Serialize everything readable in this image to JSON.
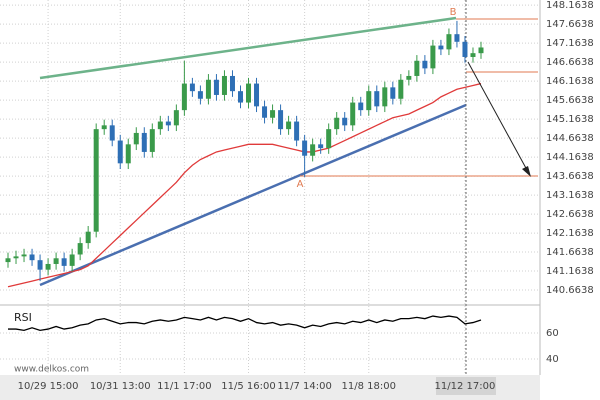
{
  "chart_data": {
    "type": "candlestick",
    "x": [
      null,
      null,
      null,
      null,
      null,
      "10/29 15:00",
      null,
      null,
      null,
      null,
      null,
      null,
      null,
      null,
      "10/31 13:00",
      null,
      null,
      null,
      null,
      null,
      null,
      null,
      "11/1 17:00",
      null,
      null,
      null,
      null,
      null,
      null,
      null,
      "11/5 16:00",
      null,
      null,
      null,
      null,
      null,
      null,
      "11/7 14:00",
      null,
      null,
      null,
      null,
      null,
      null,
      null,
      "11/8 18:00",
      null,
      null,
      null,
      null,
      null,
      null,
      null,
      null,
      null,
      null,
      null,
      "11/12 17:00",
      null,
      null
    ],
    "open": [
      141.4,
      141.5,
      141.55,
      141.6,
      141.45,
      141.2,
      141.35,
      141.5,
      141.3,
      141.6,
      141.9,
      142.2,
      144.9,
      145.0,
      144.6,
      144.0,
      144.5,
      144.8,
      144.3,
      144.9,
      145.1,
      145.0,
      145.4,
      146.1,
      145.9,
      145.7,
      146.2,
      145.8,
      146.3,
      145.9,
      145.6,
      146.1,
      145.5,
      145.2,
      145.4,
      144.9,
      145.1,
      144.6,
      144.2,
      144.5,
      144.4,
      144.9,
      145.2,
      145.0,
      145.6,
      145.4,
      145.9,
      145.5,
      146.0,
      145.7,
      146.2,
      146.3,
      146.7,
      146.5,
      147.1,
      147.0,
      147.4,
      147.2,
      146.8,
      146.9
    ],
    "high": [
      141.65,
      141.7,
      141.75,
      141.75,
      141.6,
      141.5,
      141.65,
      141.65,
      141.75,
      142.05,
      142.35,
      145.05,
      145.15,
      145.15,
      144.75,
      144.65,
      144.95,
      144.95,
      145.05,
      145.25,
      145.25,
      145.55,
      146.7,
      146.25,
      146.05,
      146.35,
      146.35,
      146.45,
      146.45,
      146.05,
      146.25,
      146.25,
      145.65,
      145.55,
      145.55,
      145.25,
      145.25,
      144.75,
      144.65,
      144.65,
      145.05,
      145.35,
      145.35,
      145.75,
      145.75,
      146.05,
      146.05,
      146.15,
      146.15,
      146.35,
      146.45,
      146.85,
      146.85,
      147.25,
      147.25,
      147.55,
      147.75,
      147.35,
      147.05,
      147.2
    ],
    "low": [
      141.25,
      141.35,
      141.4,
      141.3,
      140.9,
      141.05,
      141.2,
      141.15,
      141.15,
      141.45,
      141.75,
      142.05,
      144.75,
      144.45,
      143.85,
      143.85,
      144.35,
      144.15,
      144.15,
      144.75,
      144.85,
      144.85,
      145.25,
      145.75,
      145.55,
      145.55,
      145.65,
      145.65,
      145.75,
      145.45,
      145.45,
      145.35,
      145.05,
      145.05,
      144.75,
      144.75,
      144.45,
      143.64,
      144.05,
      144.25,
      144.25,
      144.75,
      144.85,
      144.85,
      145.25,
      145.25,
      145.35,
      145.35,
      145.55,
      145.55,
      146.05,
      146.15,
      146.35,
      146.35,
      146.85,
      146.85,
      147.05,
      146.65,
      146.65,
      146.75
    ],
    "close": [
      141.5,
      141.55,
      141.6,
      141.45,
      141.2,
      141.35,
      141.5,
      141.3,
      141.6,
      141.9,
      142.2,
      144.9,
      145.0,
      144.6,
      144.0,
      144.5,
      144.8,
      144.3,
      144.9,
      145.1,
      145.0,
      145.4,
      146.1,
      145.9,
      145.7,
      146.2,
      145.8,
      146.3,
      145.9,
      145.6,
      146.1,
      145.5,
      145.2,
      145.4,
      144.9,
      145.1,
      144.6,
      144.2,
      144.5,
      144.4,
      144.9,
      145.2,
      145.0,
      145.6,
      145.4,
      145.9,
      145.5,
      146.0,
      145.7,
      146.2,
      146.3,
      146.7,
      146.5,
      147.1,
      147.0,
      147.4,
      147.2,
      146.8,
      146.9,
      147.05
    ],
    "up_color": "#3a9a4a",
    "down_color": "#2e6fb5",
    "ylim": [
      140.27,
      148.3
    ],
    "yticks": [
      140.6638,
      141.1638,
      141.6638,
      142.1638,
      142.6638,
      143.1638,
      143.6638,
      144.1638,
      144.6638,
      145.1638,
      145.6638,
      146.1638,
      146.6638,
      147.1638,
      147.6638,
      148.1638
    ],
    "grid": true,
    "ma": {
      "color": "#e03a3a",
      "values": [
        140.75,
        140.8,
        140.85,
        140.9,
        140.95,
        141.0,
        141.05,
        141.1,
        141.15,
        141.2,
        141.3,
        141.5,
        141.7,
        141.9,
        142.1,
        142.3,
        142.5,
        142.7,
        142.9,
        143.1,
        143.3,
        143.5,
        143.75,
        143.95,
        144.1,
        144.2,
        144.3,
        144.35,
        144.4,
        144.45,
        144.5,
        144.5,
        144.5,
        144.5,
        144.45,
        144.4,
        144.35,
        144.3,
        144.3,
        144.35,
        144.4,
        144.5,
        144.6,
        144.7,
        144.8,
        144.9,
        145.0,
        145.1,
        145.2,
        145.25,
        145.3,
        145.4,
        145.5,
        145.6,
        145.75,
        145.85,
        145.95,
        146.0,
        146.05,
        146.1
      ]
    },
    "rsi": {
      "label": "RSI",
      "color": "#000000",
      "ylim": [
        30,
        81.5
      ],
      "yticks": [
        60,
        40
      ],
      "values": [
        63,
        63,
        62,
        64,
        62,
        63,
        65,
        63,
        64,
        66,
        67,
        70,
        71,
        69,
        67,
        68,
        68,
        67,
        69,
        70,
        69,
        70,
        72,
        71,
        70,
        72,
        70,
        72,
        71,
        69,
        71,
        68,
        67,
        68,
        66,
        67,
        66,
        64,
        66,
        65,
        67,
        68,
        67,
        69,
        68,
        70,
        68,
        70,
        69,
        71,
        71,
        72,
        71,
        73,
        72,
        73,
        72,
        67,
        68,
        70
      ]
    },
    "point_labels": [
      "A",
      "B"
    ],
    "watermark": "www.delkos.com"
  }
}
